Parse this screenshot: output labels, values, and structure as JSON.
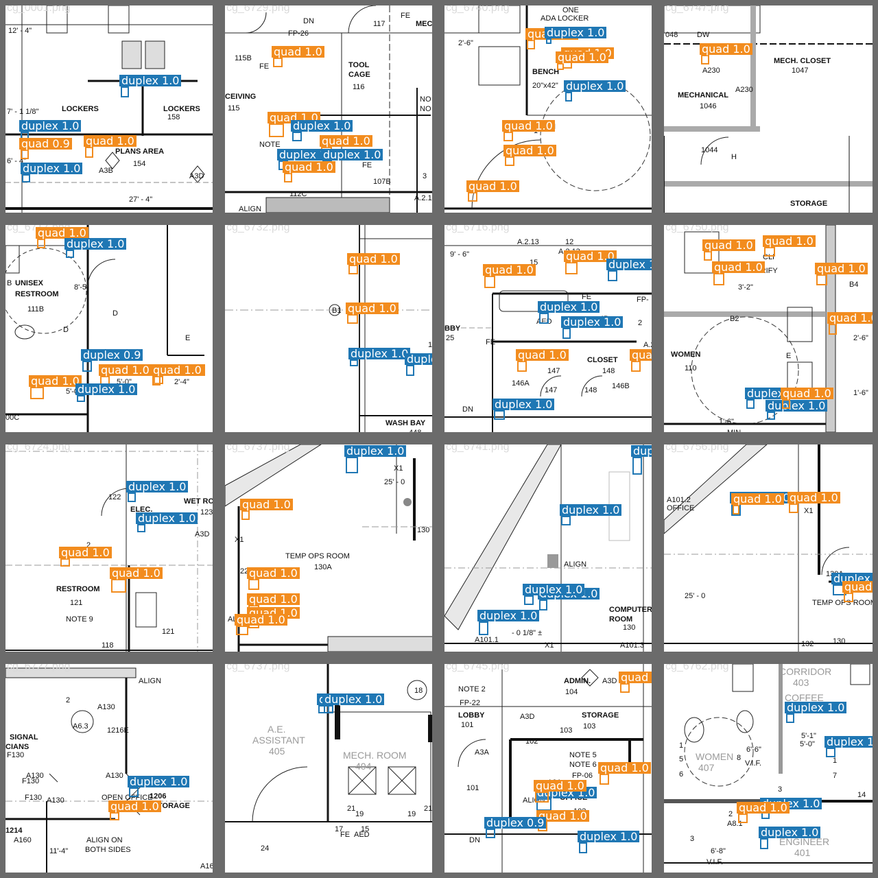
{
  "colors": {
    "quad": "#f28c1e",
    "duplex": "#1f77b4",
    "frame": "#6b6b6b"
  },
  "tiles": [
    {
      "name": "cg_0001.png",
      "texts": [
        "12' - 4\"",
        "LOCKERS",
        "LOCKERS",
        "158",
        "7' - 1 1/8\"",
        "PLANS AREA",
        "154",
        "A3B",
        "A3D",
        "6' - 4\"",
        "27' - 4\""
      ],
      "detections": [
        {
          "cls": "duplex",
          "score": "1.0"
        },
        {
          "cls": "duplex",
          "score": "1.0"
        },
        {
          "cls": "quad",
          "score": "0.9"
        },
        {
          "cls": "quad",
          "score": "1.0"
        },
        {
          "cls": "duplex",
          "score": "1.0"
        }
      ]
    },
    {
      "name": "cg_6729.png",
      "texts": [
        "DN",
        "FE",
        "MEC",
        "117",
        "FP-26",
        "115B",
        "FE",
        "TOOL",
        "CAGE",
        "116",
        "CEIVING",
        "115",
        "NO",
        "NO",
        "NOTE",
        "FE",
        "107B",
        "3",
        "112C",
        "ALIGN",
        "A.2.1"
      ],
      "detections": [
        {
          "cls": "quad",
          "score": "1.0"
        },
        {
          "cls": "quad",
          "score": "1.0"
        },
        {
          "cls": "duplex",
          "score": "1.0"
        },
        {
          "cls": "quad",
          "score": "1.0"
        },
        {
          "cls": "duplex",
          "score": "1.0"
        },
        {
          "cls": "duplex",
          "score": "1.0"
        },
        {
          "cls": "quad",
          "score": "1.0"
        }
      ]
    },
    {
      "name": "cg_6740.png",
      "texts": [
        "ONE",
        "ADA LOCKER",
        "2'-6\"",
        "BENCH",
        "20\"x42\"",
        "MI",
        "1'-"
      ],
      "detections": [
        {
          "cls": "quad",
          "score": "1.0"
        },
        {
          "cls": "duplex",
          "score": "1.0"
        },
        {
          "cls": "quad",
          "score": "1.0"
        },
        {
          "cls": "quad",
          "score": "1.0"
        },
        {
          "cls": "duplex",
          "score": "1.0"
        },
        {
          "cls": "quad",
          "score": "1.0"
        },
        {
          "cls": "quad",
          "score": "1.0"
        },
        {
          "cls": "quad",
          "score": "1.0"
        }
      ]
    },
    {
      "name": "cg_6747.png",
      "texts": [
        "048",
        "DW",
        "1047",
        "MECH. CLOSET",
        "1047",
        "A230",
        "A230",
        "MECHANICAL",
        "1046",
        "1044",
        "H",
        "STORAGE"
      ],
      "detections": [
        {
          "cls": "quad",
          "score": "1.0"
        }
      ]
    },
    {
      "name": "cg_6717.png",
      "texts": [
        "B",
        "UNISEX",
        "RESTROOM",
        "111B",
        "8'-5\"",
        "D",
        "D",
        "E",
        "5'-0\"",
        "2'-4\"",
        "5'-0",
        "00C"
      ],
      "detections": [
        {
          "cls": "quad",
          "score": "1.0"
        },
        {
          "cls": "duplex",
          "score": "1.0"
        },
        {
          "cls": "duplex",
          "score": "0.9"
        },
        {
          "cls": "quad",
          "score": "1.0"
        },
        {
          "cls": "quad",
          "score": "1.0"
        },
        {
          "cls": "quad",
          "score": "1.0"
        },
        {
          "cls": "quad",
          "score": "1.0"
        },
        {
          "cls": "duplex",
          "score": "1.0"
        }
      ]
    },
    {
      "name": "cg_6732.png",
      "texts": [
        "B1",
        "1/",
        "WASH BAY",
        "448"
      ],
      "detections": [
        {
          "cls": "quad",
          "score": "1.0"
        },
        {
          "cls": "quad",
          "score": "1.0"
        },
        {
          "cls": "duplex",
          "score": "1.0"
        },
        {
          "cls": "duplex",
          "score": "1.0"
        }
      ]
    },
    {
      "name": "cg_6716.png",
      "texts": [
        "A.2.13",
        "12",
        "A.2.13",
        "9' - 6\"",
        "15",
        "FE",
        "FP-",
        "BBY",
        "25",
        "AED",
        "4B",
        "2",
        "FE",
        "A.2.1",
        "CLOSET",
        "147",
        "148",
        "146A",
        "147",
        "148",
        "146B",
        "DN"
      ],
      "detections": [
        {
          "cls": "quad",
          "score": "1.0"
        },
        {
          "cls": "quad",
          "score": "1.0"
        },
        {
          "cls": "duplex",
          "score": "1.0"
        },
        {
          "cls": "duplex",
          "score": "1.0"
        },
        {
          "cls": "duplex",
          "score": "1.0"
        },
        {
          "cls": "quad",
          "score": "1.0"
        },
        {
          "cls": "quad",
          "score": "1.0"
        },
        {
          "cls": "duplex",
          "score": "1.0"
        }
      ]
    },
    {
      "name": "cg_6750.png",
      "texts": [
        "CLI",
        "VERIFY",
        "3'-2\"",
        "B4",
        "B2",
        "WOMEN",
        "110",
        "E",
        "2'-6\"",
        "1'-6\"",
        "1'-6\"",
        "MIN"
      ],
      "detections": [
        {
          "cls": "quad",
          "score": "1.0"
        },
        {
          "cls": "quad",
          "score": "1.0"
        },
        {
          "cls": "quad",
          "score": "1.0"
        },
        {
          "cls": "quad",
          "score": "1.0"
        },
        {
          "cls": "duplex",
          "score": "1.0"
        },
        {
          "cls": "quad",
          "score": "1.0"
        },
        {
          "cls": "duplex",
          "score": "0.9"
        },
        {
          "cls": "quad",
          "score": "1.0"
        }
      ]
    },
    {
      "name": "cg_6724.png",
      "texts": [
        "122",
        "ELEC.",
        "WET RO",
        "123",
        "A3D",
        "2",
        "RESTROOM",
        "121",
        "NOTE 9",
        "121",
        "118"
      ],
      "detections": [
        {
          "cls": "duplex",
          "score": "1.0"
        },
        {
          "cls": "duplex",
          "score": "1.0"
        },
        {
          "cls": "quad",
          "score": "1.0"
        },
        {
          "cls": "quad",
          "score": "1.0"
        }
      ]
    },
    {
      "name": "cg_6737.png",
      "texts": [
        "X1",
        "25' - 0",
        "X1",
        "TEMP OPS ROOM",
        "130A",
        "130",
        "22' - 3 3/4\" ±",
        "ALIGN"
      ],
      "detections": [
        {
          "cls": "quad",
          "score": "1.0"
        },
        {
          "cls": "duplex",
          "score": "1.0"
        },
        {
          "cls": "quad",
          "score": "1.0"
        },
        {
          "cls": "quad",
          "score": "1.0"
        },
        {
          "cls": "quad",
          "score": "1.0"
        },
        {
          "cls": "quad",
          "score": "1.0"
        }
      ]
    },
    {
      "name": "cg_6741.png",
      "texts": [
        "ALIGN",
        "COMPUTER",
        "ROOM",
        "130",
        "A101.1",
        "X1",
        "A101.3",
        "- 0 1/8\" ±"
      ],
      "detections": [
        {
          "cls": "duplex",
          "score": "1.0"
        },
        {
          "cls": "duplex",
          "score": "1.0"
        },
        {
          "cls": "duplex",
          "score": "1.0"
        },
        {
          "cls": "duplex",
          "score": "1.0"
        },
        {
          "cls": "duplex",
          "score": "1.0"
        }
      ]
    },
    {
      "name": "cg_6756.png",
      "texts": [
        "X1",
        "25' - 0",
        "TEMP OPS ROOM",
        "130A",
        "130",
        "132",
        "A101.2",
        "OFFICE"
      ],
      "detections": [
        {
          "cls": "duplex",
          "score": "1.0"
        },
        {
          "cls": "quad",
          "score": "1.0"
        },
        {
          "cls": "quad",
          "score": "1.0"
        },
        {
          "cls": "duplex",
          "score": "1.0"
        },
        {
          "cls": "quad",
          "score": "1.0"
        }
      ]
    },
    {
      "name": "cg_6727.png",
      "texts": [
        "ALIGN",
        "2",
        "A6.3",
        "A130",
        "1216E",
        "SIGNAL",
        "CIANS",
        "F130",
        "A130",
        "A130",
        "F130",
        "F130",
        "A130",
        "OPEN OFFICE",
        "1206",
        "TORAGE",
        "1214",
        "A160",
        "ALIGN ON",
        "BOTH SIDES",
        "11'-4\"",
        "A160"
      ],
      "detections": [
        {
          "cls": "duplex",
          "score": "1.0"
        },
        {
          "cls": "quad",
          "score": "1.0"
        }
      ]
    },
    {
      "name": "cg_6737.png",
      "texts": [
        "18",
        "A.E.",
        "ASSISTANT",
        "405",
        "21",
        "21",
        "MECH. ROOM",
        "404",
        "19",
        "19",
        "FE",
        "AED",
        "17",
        "15",
        "24"
      ],
      "detections": [
        {
          "cls": "duplex",
          "score": "1.0"
        },
        {
          "cls": "duplex",
          "score": "1.0"
        }
      ]
    },
    {
      "name": "cg_6745.png",
      "texts": [
        "NOTE 2",
        "FP-22",
        "ADMIN.",
        "104",
        "A3D",
        "LOBBY",
        "101",
        "A3D",
        "STORAGE",
        "103",
        "103",
        "A3A",
        "102",
        "NOTE 5",
        "NOTE 6",
        "FP-06",
        "101",
        "A3A",
        "OFFICE",
        "102",
        "ALIGN",
        "DN"
      ],
      "detections": [
        {
          "cls": "quad",
          "score": "1.0"
        },
        {
          "cls": "quad",
          "score": "1.0"
        },
        {
          "cls": "duplex",
          "score": "1.0"
        },
        {
          "cls": "quad",
          "score": "1.0"
        },
        {
          "cls": "quad",
          "score": "1.0"
        },
        {
          "cls": "duplex",
          "score": "0.9"
        },
        {
          "cls": "duplex",
          "score": "1.0"
        }
      ]
    },
    {
      "name": "cg_6762.png",
      "texts": [
        "CORRIDOR",
        "403",
        "COFFEE",
        "5'-1\"",
        "5'-0\"",
        "1",
        "5",
        "6",
        "WOMEN",
        "407",
        "8",
        "6'-6\"",
        "V.I.F.",
        "1",
        "7",
        "3",
        "A8.1",
        "14",
        "2",
        "A8.1",
        "3",
        "AREA",
        "ENGINEER",
        "401",
        "6'-8\"",
        "V.I.F."
      ],
      "detections": [
        {
          "cls": "duplex",
          "score": "1.0"
        },
        {
          "cls": "duplex",
          "score": "1"
        },
        {
          "cls": "duplex",
          "score": "1.0"
        },
        {
          "cls": "quad",
          "score": "1.0"
        },
        {
          "cls": "duplex",
          "score": "1.0"
        }
      ]
    }
  ]
}
